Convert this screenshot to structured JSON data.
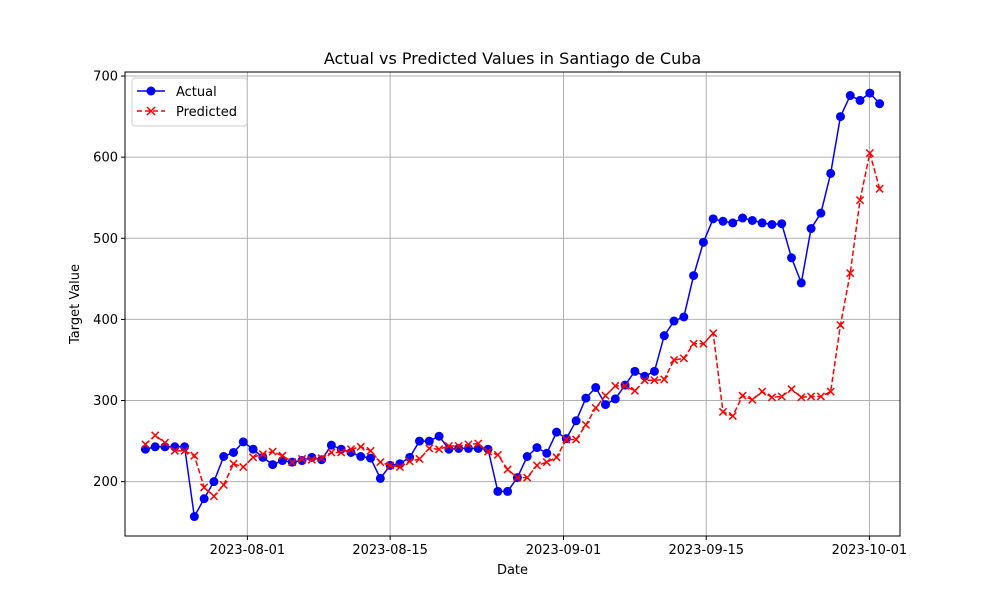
{
  "colors": {
    "actual": "#0000ff",
    "predicted": "#ff0000",
    "grid": "#b0b0b0",
    "frame": "#000000"
  },
  "chart_data": {
    "type": "line",
    "title": "Actual vs Predicted Values in Santiago de Cuba",
    "xlabel": "Date",
    "ylabel": "Target Value",
    "x_start": "2023-07-22",
    "x_end": "2023-10-02",
    "xlim": [
      "2023-07-20",
      "2023-10-04"
    ],
    "ylim": [
      133,
      705
    ],
    "x_ticks": [
      {
        "date": "2023-08-01",
        "label": "2023-08-01"
      },
      {
        "date": "2023-08-15",
        "label": "2023-08-15"
      },
      {
        "date": "2023-09-01",
        "label": "2023-09-01"
      },
      {
        "date": "2023-09-15",
        "label": "2023-09-15"
      },
      {
        "date": "2023-10-01",
        "label": "2023-10-01"
      }
    ],
    "y_ticks": [
      {
        "value": 200,
        "label": "200"
      },
      {
        "value": 300,
        "label": "300"
      },
      {
        "value": 400,
        "label": "400"
      },
      {
        "value": 500,
        "label": "500"
      },
      {
        "value": 600,
        "label": "600"
      },
      {
        "value": 700,
        "label": "700"
      }
    ],
    "grid": true,
    "legend_position": "top-left",
    "series": [
      {
        "name": "Actual",
        "marker": "circle",
        "linestyle": "solid",
        "values": [
          240,
          243,
          243,
          243,
          243,
          157,
          179,
          200,
          231,
          236,
          249,
          240,
          230,
          221,
          226,
          224,
          226,
          230,
          227,
          245,
          240,
          236,
          231,
          229,
          204,
          220,
          222,
          230,
          250,
          250,
          256,
          240,
          241,
          241,
          241,
          240,
          188,
          188,
          205,
          231,
          242,
          235,
          261,
          253,
          275,
          303,
          316,
          295,
          302,
          319,
          336,
          330,
          336,
          380,
          398,
          403,
          454,
          495,
          524,
          521,
          519,
          525,
          522,
          519,
          517,
          518,
          476,
          445,
          512,
          531,
          580,
          650,
          676,
          670,
          679,
          666
        ]
      },
      {
        "name": "Predicted",
        "marker": "x",
        "linestyle": "dashed",
        "values": [
          246,
          257,
          248,
          238,
          238,
          232,
          193,
          182,
          196,
          222,
          218,
          230,
          234,
          237,
          232,
          224,
          228,
          227,
          229,
          236,
          236,
          240,
          243,
          238,
          224,
          220,
          218,
          225,
          228,
          241,
          240,
          244,
          244,
          246,
          247,
          237,
          233,
          215,
          205,
          205,
          220,
          224,
          230,
          252,
          252,
          270,
          291,
          306,
          318,
          318,
          312,
          325,
          325,
          326,
          350,
          352,
          370,
          370,
          383,
          286,
          281,
          306,
          301,
          311,
          304,
          305,
          314,
          304,
          305,
          305,
          311,
          393,
          457,
          547,
          605,
          561
        ]
      }
    ]
  }
}
